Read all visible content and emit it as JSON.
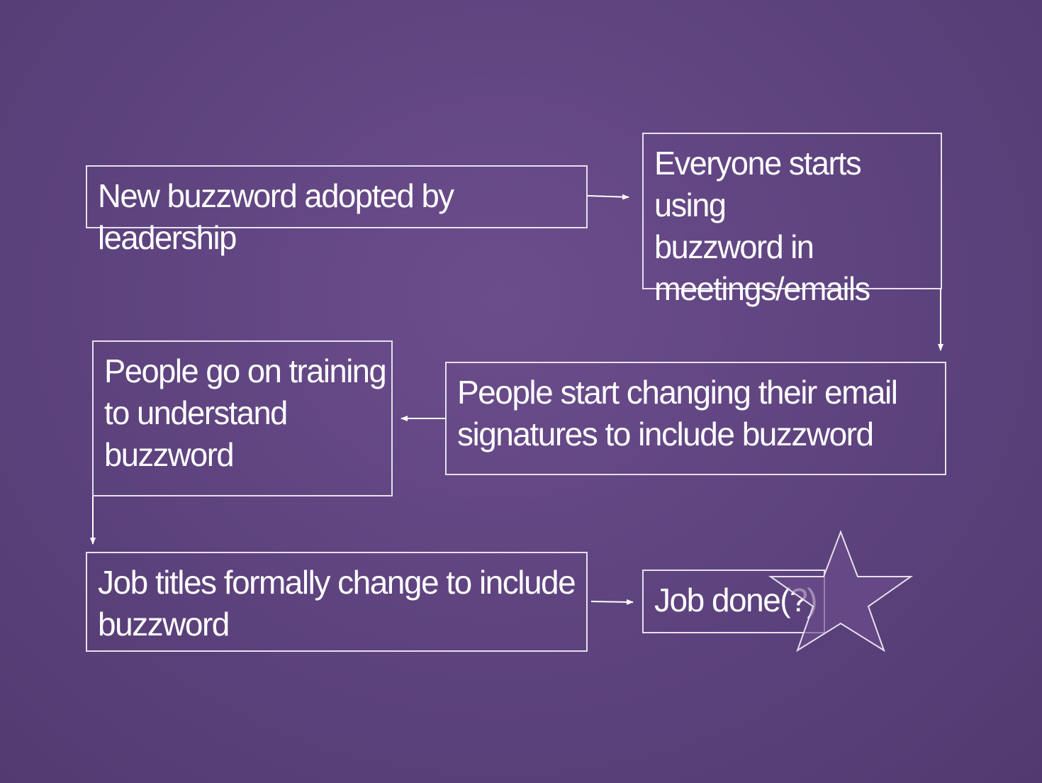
{
  "steps": {
    "step1": "New buzzword adopted by leadership",
    "step2": "Everyone starts using\nbuzzword in\nmeetings/emails",
    "step3": "People start changing their email\nsignatures to include buzzword",
    "step4": "People go on training\nto understand\nbuzzword",
    "step5": "Job titles formally change to include\nbuzzword",
    "step6": "Job done(?)"
  },
  "colors": {
    "background": "#5f4480",
    "border": "#e6e0ee",
    "text": "#ffffff",
    "star_fill": "#6c4d8c"
  },
  "icons": {
    "star": "star-icon"
  }
}
